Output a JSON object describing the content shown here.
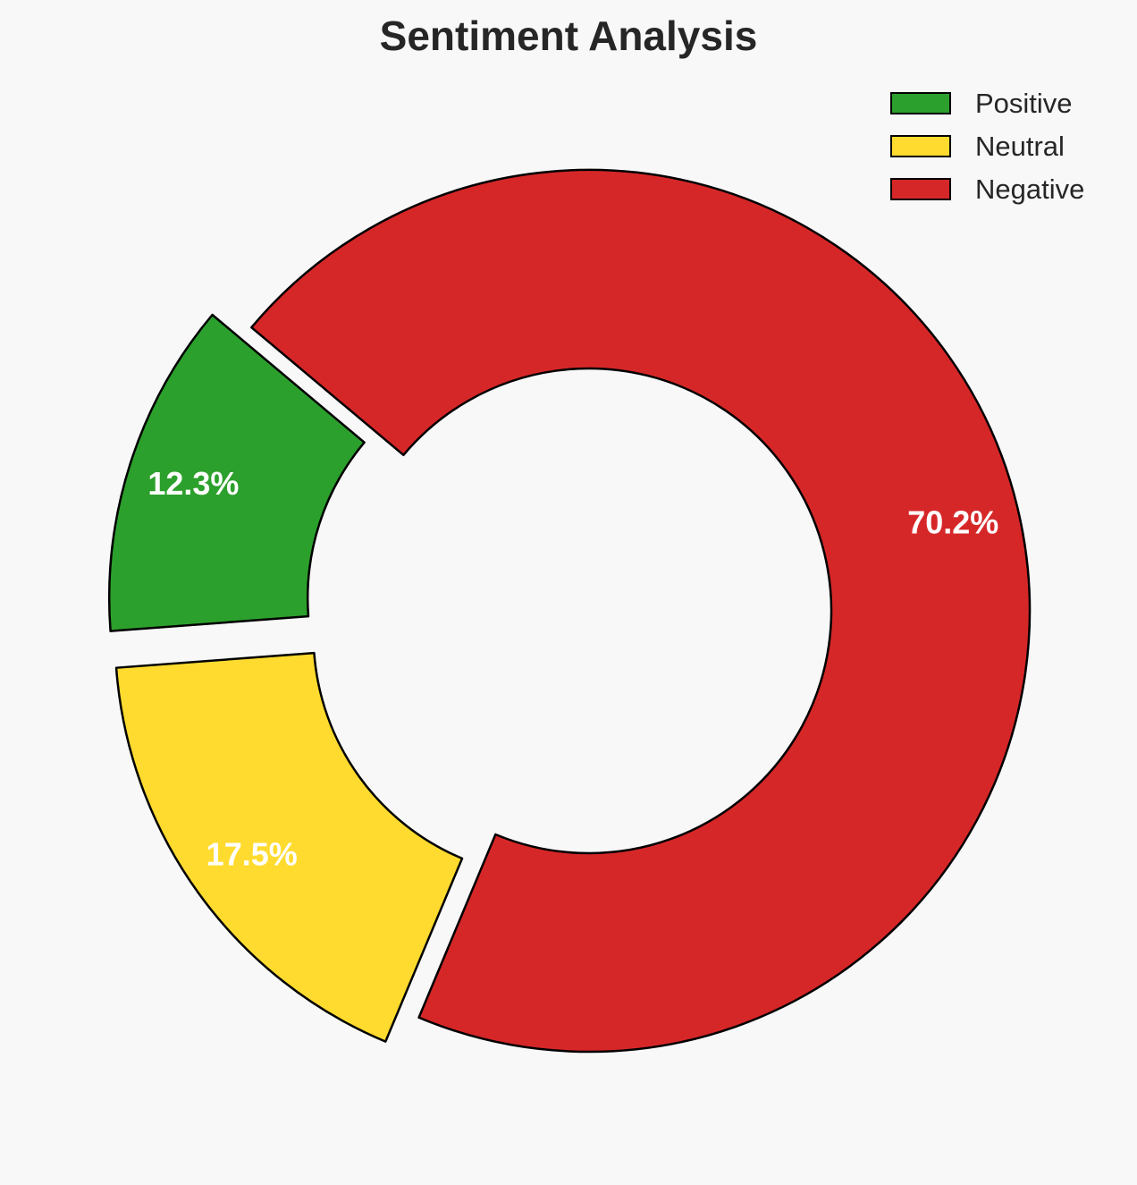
{
  "chart_data": {
    "type": "pie",
    "variant": "donut",
    "title": "Sentiment Analysis",
    "categories": [
      "Positive",
      "Neutral",
      "Negative"
    ],
    "values": [
      12.3,
      17.5,
      70.2
    ],
    "labels": [
      "12.3%",
      "17.5%",
      "70.2%"
    ],
    "colors": [
      "#2ca02c",
      "#ffdb2f",
      "#d62728"
    ],
    "exploded": [
      true,
      true,
      false
    ],
    "legend_position": "top-right",
    "edge_color": "#000000",
    "background": "#f8f8f8"
  }
}
